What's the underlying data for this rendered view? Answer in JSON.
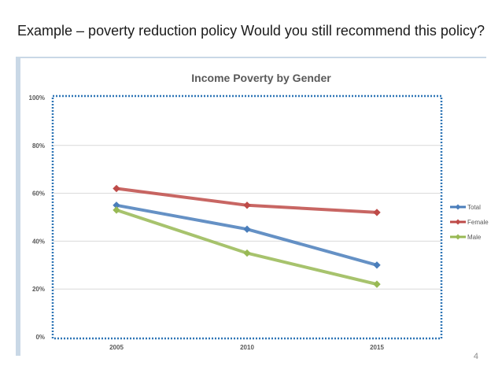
{
  "slide": {
    "title": "Example – poverty reduction policy Would you still recommend this policy?",
    "page_number": "4"
  },
  "chart_data": {
    "type": "line",
    "title": "Income Poverty by Gender",
    "categories": [
      "2005",
      "2010",
      "2015"
    ],
    "series": [
      {
        "name": "Total",
        "values": [
          55,
          45,
          30
        ],
        "color": "#4a7ebb"
      },
      {
        "name": "Female",
        "values": [
          62,
          55,
          52
        ],
        "color": "#be4b48"
      },
      {
        "name": "Male",
        "values": [
          53,
          35,
          22
        ],
        "color": "#98b954"
      }
    ],
    "ylim": [
      0,
      100
    ],
    "yticks": [
      "0%",
      "20%",
      "40%",
      "60%",
      "80%",
      "100%"
    ],
    "ytick_values": [
      0,
      20,
      40,
      60,
      80,
      100
    ],
    "xlabel": "",
    "ylabel": "",
    "grid": true,
    "legend": "right",
    "colors": {
      "frame_accent": "#c9d8e6",
      "plot_border": "#2e75b6",
      "grid": "#d9d9d9",
      "axis_text": "#595959",
      "title_text": "#595959"
    }
  }
}
